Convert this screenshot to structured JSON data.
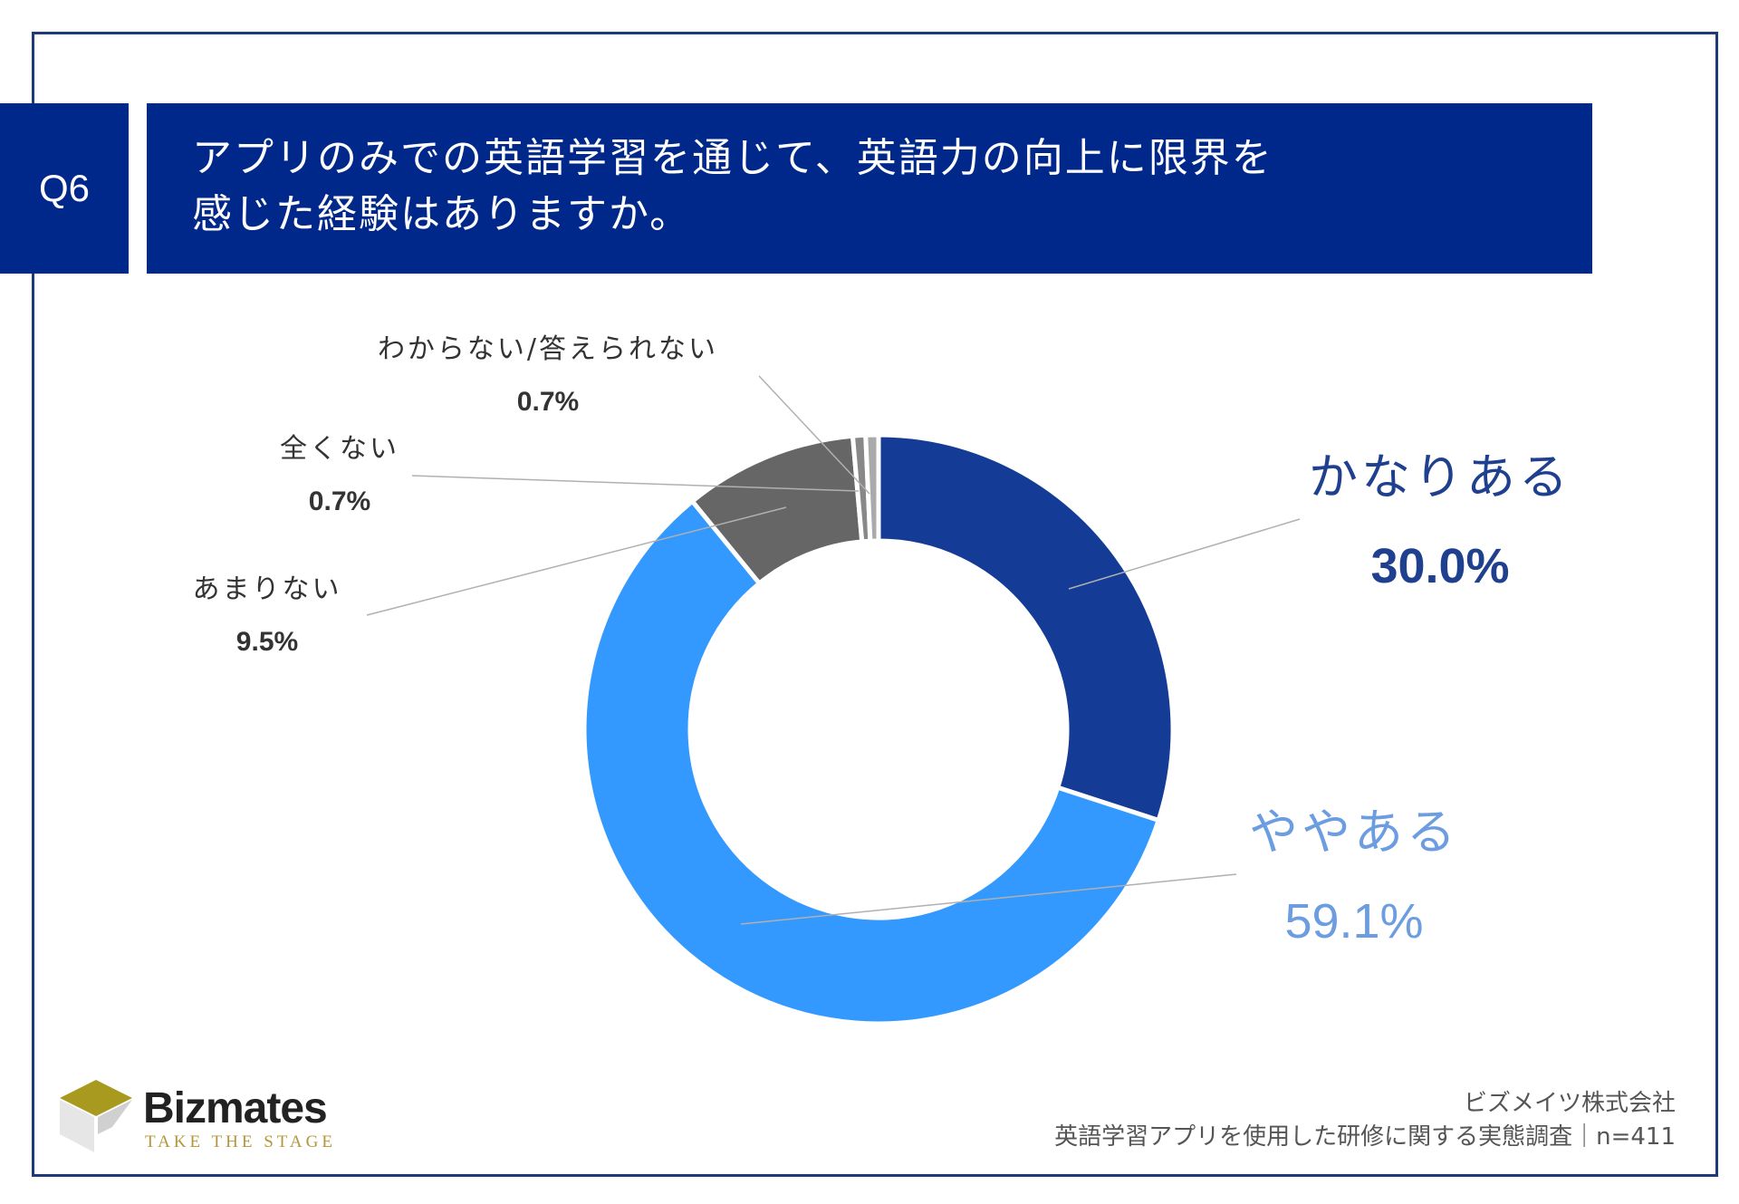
{
  "header": {
    "badge": "Q6",
    "title_line1": "アプリのみでの英語学習を通じて、英語力の向上に限界を",
    "title_line2": "感じた経験はありますか。"
  },
  "chart_data": {
    "type": "pie",
    "donut": true,
    "start_angle_deg": 0,
    "direction": "clockwise",
    "legend": "none",
    "slices": [
      {
        "label": "かなりある",
        "value_label": "30.0%",
        "value": 30.0,
        "color": "#143c96",
        "label_color": "#1f3f8f"
      },
      {
        "label": "ややある",
        "value_label": "59.1%",
        "value": 59.1,
        "color": "#3399ff",
        "label_color": "#6b9de0"
      },
      {
        "label": "あまりない",
        "value_label": "9.5%",
        "value": 9.5,
        "color": "#666666",
        "label_color": "#333333"
      },
      {
        "label": "全くない",
        "value_label": "0.7%",
        "value": 0.7,
        "color": "#888888",
        "label_color": "#333333"
      },
      {
        "label": "わからない/答えられない",
        "value_label": "0.7%",
        "value": 0.7,
        "color": "#aaaaaa",
        "label_color": "#333333"
      }
    ]
  },
  "footer": {
    "company": "ビズメイツ株式会社",
    "survey": "英語学習アプリを使用した研修に関する実態調査｜n=411"
  },
  "logo": {
    "name": "Bizmates",
    "tagline": "TAKE THE STAGE",
    "colors": {
      "gold": "#a89a1e",
      "light": "#e8e8e8",
      "mid": "#cfcfcf"
    }
  }
}
